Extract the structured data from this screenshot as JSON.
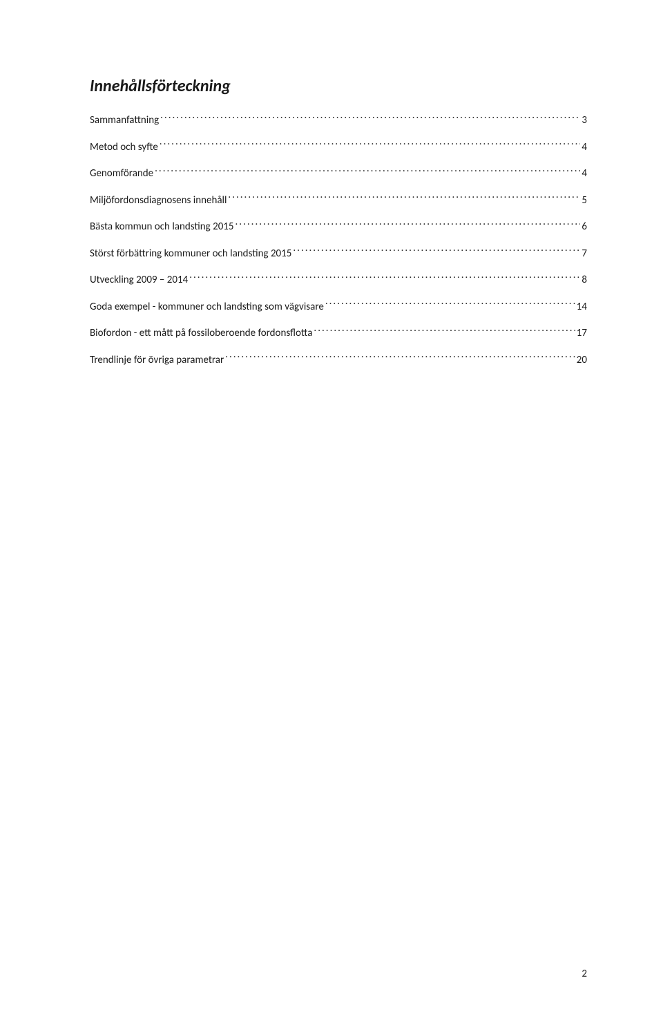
{
  "title": "Innehållsförteckning",
  "entries": [
    {
      "label": "Sammanfattning",
      "page": "3"
    },
    {
      "label": "Metod och syfte",
      "page": "4"
    },
    {
      "label": "Genomförande",
      "page": "4"
    },
    {
      "label": "Miljöfordonsdiagnosens innehåll",
      "page": "5"
    },
    {
      "label": "Bästa kommun och landsting 2015",
      "page": "6"
    },
    {
      "label": "Störst förbättring kommuner och landsting 2015",
      "page": "7"
    },
    {
      "label": "Utveckling 2009 – 2014",
      "page": "8"
    },
    {
      "label": "Goda exempel - kommuner och landsting som vägvisare",
      "page": "14"
    },
    {
      "label": "Biofordon - ett mått på fossiloberoende fordonsflotta",
      "page": "17"
    },
    {
      "label": "Trendlinje för övriga parametrar",
      "page": "20"
    }
  ],
  "page_number": "2",
  "colors": {
    "text": "#1a1a1a",
    "background": "#ffffff"
  },
  "typography": {
    "title_fontsize": 24,
    "title_fontstyle": "italic",
    "title_fontweight": "bold",
    "entry_fontsize": 15
  }
}
